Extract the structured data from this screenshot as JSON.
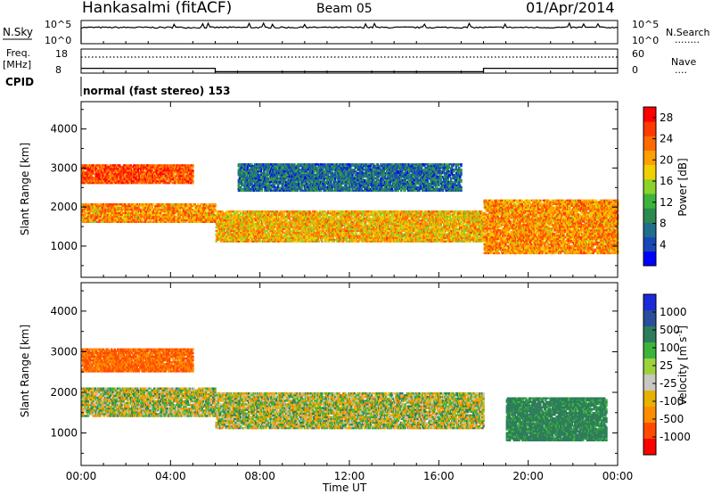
{
  "header": {
    "station": "Hankasalmi (fitACF)",
    "beam": "Beam 05",
    "date": "01/Apr/2014"
  },
  "nsky_panel": {
    "left_label": "N.Sky",
    "right_label": "N.Search",
    "right_legend_line": "........",
    "ticks_left": [
      "10^5",
      "10^0"
    ],
    "ticks_right": [
      "10^5",
      "10^0"
    ]
  },
  "freq_panel": {
    "left_label_1": "Freq.",
    "left_label_2": "[MHz]",
    "right_label": "Nave",
    "right_legend_line": "....",
    "ticks_left": [
      "18",
      "8"
    ],
    "ticks_right": [
      "60",
      "0"
    ]
  },
  "cpid_panel": {
    "left_label": "CPID",
    "text": "normal (fast stereo) 153"
  },
  "power_panel": {
    "ylabel": "Slant Range [km]",
    "cbar_label": "Power [dB]"
  },
  "velocity_panel": {
    "ylabel": "Slant Range [km]",
    "cbar_label": "Velocity [m s",
    "cbar_label_sup": "-1",
    "cbar_label_end": "]"
  },
  "xaxis": {
    "label": "Time UT"
  },
  "colors": {
    "power_scale": [
      "#0000ff",
      "#1848b8",
      "#1e6e8c",
      "#2d8a4e",
      "#3cb43c",
      "#8cd22a",
      "#f0d000",
      "#ff9f00",
      "#ff6a00",
      "#ff3a00",
      "#ff0000"
    ],
    "velocity_scale": [
      "#ff0000",
      "#ff4a00",
      "#ff8c00",
      "#e8b000",
      "#c8c8c0",
      "#9cd23c",
      "#3cb43c",
      "#2e7d5a",
      "#2a4e9a",
      "#1a2ad8"
    ]
  },
  "chart_data": [
    {
      "type": "line",
      "title": "N.Sky / N.Search",
      "x_range_hours": [
        0,
        24
      ],
      "ylim_log10": [
        0,
        5
      ],
      "series": [
        {
          "name": "N.Sky",
          "approx_log10": 3.5
        },
        {
          "name": "N.Search",
          "approx_log10": 3.5
        }
      ]
    },
    {
      "type": "line",
      "title": "Freq. / Nave",
      "x_range_hours": [
        0,
        24
      ],
      "series": [
        {
          "name": "Freq.",
          "units": "MHz",
          "ylim": [
            8,
            18
          ],
          "x": [
            0,
            6,
            6,
            18,
            18,
            24
          ],
          "y": [
            10,
            10,
            8.6,
            8.6,
            10,
            10
          ]
        },
        {
          "name": "Nave",
          "ylim": [
            0,
            60
          ],
          "x": [
            0,
            24
          ],
          "y": [
            40,
            40
          ]
        }
      ]
    },
    {
      "type": "heatmap",
      "title": "Power",
      "ylabel": "Slant Range [km]",
      "y_ticks": [
        1000,
        2000,
        3000,
        4000
      ],
      "ylim": [
        200,
        4700
      ],
      "x_ticks": [
        "00:00",
        "04:00",
        "08:00",
        "12:00",
        "16:00",
        "20:00",
        "00:00"
      ],
      "colorbar": {
        "label": "Power [dB]",
        "ticks": [
          4,
          8,
          12,
          16,
          20,
          24,
          28
        ],
        "range": [
          0,
          30
        ]
      },
      "bands": [
        {
          "t": [
            0,
            6
          ],
          "range_km": [
            1600,
            2100
          ],
          "value_db": 22
        },
        {
          "t": [
            6,
            18
          ],
          "range_km": [
            1100,
            1900
          ],
          "value_db": 20
        },
        {
          "t": [
            0,
            5
          ],
          "range_km": [
            2600,
            3100
          ],
          "value_db": 26
        },
        {
          "t": [
            7,
            17
          ],
          "range_km": [
            2400,
            3100
          ],
          "value_db": 6
        },
        {
          "t": [
            18,
            24
          ],
          "range_km": [
            800,
            2200
          ],
          "value_db": 22
        }
      ]
    },
    {
      "type": "heatmap",
      "title": "Velocity",
      "ylabel": "Slant Range [km]",
      "y_ticks": [
        1000,
        2000,
        3000,
        4000
      ],
      "ylim": [
        200,
        4700
      ],
      "x_ticks": [
        "00:00",
        "04:00",
        "08:00",
        "12:00",
        "16:00",
        "20:00",
        "00:00"
      ],
      "colorbar": {
        "label": "Velocity [m s-1]",
        "ticks": [
          1000,
          500,
          100,
          25,
          -25,
          -100,
          -500,
          -1000
        ]
      },
      "bands": [
        {
          "t": [
            0,
            6
          ],
          "range_km": [
            1400,
            2100
          ],
          "value_ms": 0
        },
        {
          "t": [
            6,
            18
          ],
          "range_km": [
            1100,
            2000
          ],
          "value_ms": 0
        },
        {
          "t": [
            0,
            5
          ],
          "range_km": [
            2500,
            3100
          ],
          "value_ms": -500
        },
        {
          "t": [
            19,
            23.5
          ],
          "range_km": [
            800,
            1900
          ],
          "value_ms": 200
        }
      ]
    }
  ]
}
